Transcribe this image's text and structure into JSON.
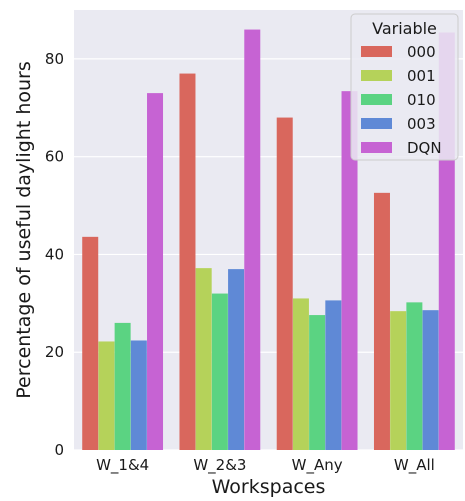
{
  "chart_data": {
    "type": "bar",
    "title": "",
    "xlabel": "Workspaces",
    "ylabel": "Percentage of useful daylight hours",
    "categories": [
      "W_1&4",
      "W_2&3",
      "W_Any",
      "W_All"
    ],
    "ylim": [
      0,
      90
    ],
    "yticks": [
      0,
      20,
      40,
      60,
      80
    ],
    "grid": true,
    "legend": {
      "title": "Variable",
      "placement": "top-right"
    },
    "series": [
      {
        "name": "000",
        "color": "#d9675d",
        "values": [
          43.6,
          77.0,
          68.0,
          52.6
        ]
      },
      {
        "name": "001",
        "color": "#b5d25a",
        "values": [
          22.2,
          37.2,
          31.0,
          28.4
        ]
      },
      {
        "name": "010",
        "color": "#5bd382",
        "values": [
          26.0,
          32.0,
          27.6,
          30.2
        ]
      },
      {
        "name": "003",
        "color": "#5f89d6",
        "values": [
          22.4,
          37.0,
          30.6,
          28.6
        ]
      },
      {
        "name": "DQN",
        "color": "#c663d3",
        "values": [
          73.0,
          86.0,
          73.4,
          85.4
        ]
      }
    ]
  },
  "colors": {
    "plot_background": "#eaeaf2",
    "grid": "#ffffff",
    "legend_background": "#eaeaf2"
  }
}
